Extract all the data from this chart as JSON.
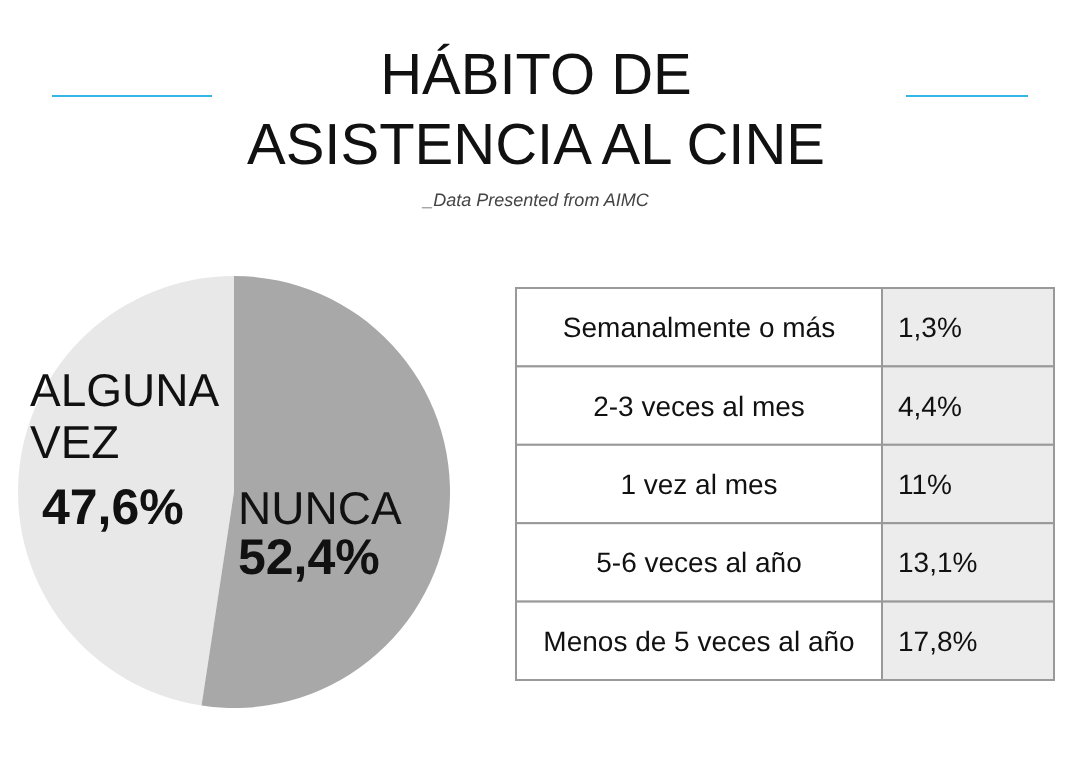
{
  "chart_data": [
    {
      "type": "pie",
      "title": "HÁBITO DE ASISTENCIA AL CINE",
      "categories": [
        "ALGUNA VEZ",
        "NUNCA"
      ],
      "values": [
        47.6,
        52.4
      ],
      "colors": [
        "#e8e8e8",
        "#a8a8a8"
      ],
      "value_labels": [
        "47,6%",
        "52,4%"
      ]
    },
    {
      "type": "other",
      "annotations": [
        "_Data Presented from AIMC"
      ],
      "categories": [
        "Semanalmente o más",
        "2-3 veces al mes",
        "1 vez al mes",
        "5-6 veces al año",
        "Menos de 5 veces al año"
      ],
      "values": [
        1.3,
        4.4,
        11,
        13.1,
        17.8
      ],
      "value_labels": [
        "1,3%",
        "4,4%",
        "11%",
        "13,1%",
        "17,8%"
      ]
    }
  ]
}
